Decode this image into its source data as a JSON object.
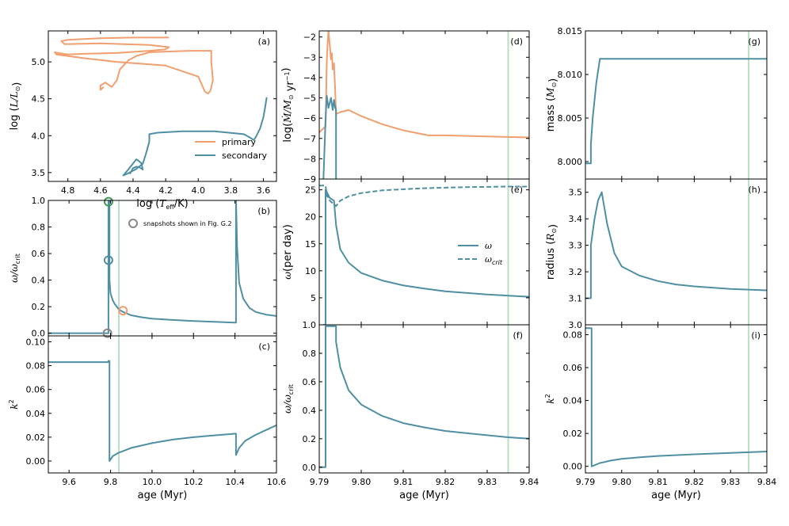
{
  "colors": {
    "primary": "#f19f6f",
    "secondary": "#4f8fa3",
    "vline": "#b9dfc7",
    "snap_gray": "#888888",
    "snap_green": "#3f9a5a"
  },
  "legend": {
    "primary": "primary",
    "secondary": "secondary"
  },
  "snap_legend": "snapshots shown in Fig. G.2",
  "omega_legend": {
    "omega": "ω",
    "omega_crit": "ω",
    "crit_sub": "crit"
  },
  "chart_data": [
    {
      "id": "a",
      "panel_label": "(a)",
      "type": "line",
      "xlabel": {
        "pre": "log (",
        "var": "T",
        "sub": "eff",
        "post": "/K)"
      },
      "ylabel": {
        "pre": "log (",
        "var": "L",
        "mid": "/",
        "var2": "L",
        "sub": "⊙",
        "post": ")"
      },
      "xlim": [
        4.92,
        3.52
      ],
      "ylim": [
        3.38,
        5.42
      ],
      "xticks": [
        "4.8",
        "4.6",
        "4.4",
        "4.2",
        "4.0",
        "3.8",
        "3.6"
      ],
      "xtick_values": [
        4.8,
        4.6,
        4.4,
        4.2,
        4.0,
        3.8,
        3.6
      ],
      "yticks": [
        "3.5",
        "4.0",
        "4.5",
        "5.0"
      ],
      "ytick_values": [
        3.5,
        4.0,
        4.5,
        5.0
      ],
      "series": [
        {
          "name": "primary",
          "color": "primary",
          "x": [
            4.58,
            4.6,
            4.6,
            4.57,
            4.55,
            4.53,
            4.5,
            4.48,
            4.43,
            4.38,
            4.3,
            4.2,
            4.05,
            3.92,
            3.92,
            3.91,
            3.925,
            3.94,
            3.96,
            4.0,
            4.2,
            4.5,
            4.7,
            4.87,
            4.88,
            4.86,
            4.8,
            4.7,
            4.5,
            4.3,
            4.2,
            4.18,
            4.3,
            4.6,
            4.82,
            4.84,
            4.8,
            4.6,
            4.4,
            4.25,
            4.18
          ],
          "y": [
            4.66,
            4.62,
            4.68,
            4.72,
            4.69,
            4.66,
            4.75,
            4.9,
            5.02,
            5.08,
            5.13,
            5.14,
            5.15,
            5.15,
            5.0,
            4.75,
            4.61,
            4.57,
            4.6,
            4.8,
            4.95,
            5.0,
            5.05,
            5.1,
            5.13,
            5.12,
            5.1,
            5.11,
            5.12,
            5.15,
            5.17,
            5.2,
            5.23,
            5.25,
            5.24,
            5.28,
            5.3,
            5.32,
            5.33,
            5.33,
            5.33
          ]
        },
        {
          "name": "secondary",
          "color": "secondary",
          "x": [
            4.42,
            4.41,
            4.4,
            4.38,
            4.36,
            4.34,
            4.35,
            4.38,
            4.43,
            4.46,
            4.43,
            4.38,
            4.34,
            4.32,
            4.3,
            4.3,
            4.25,
            4.1,
            3.9,
            3.72,
            3.68,
            3.66,
            3.65,
            3.64,
            3.62,
            3.6,
            3.59,
            3.58
          ],
          "y": [
            3.48,
            3.52,
            3.56,
            3.58,
            3.57,
            3.54,
            3.63,
            3.68,
            3.54,
            3.46,
            3.49,
            3.55,
            3.62,
            3.76,
            3.92,
            4.02,
            4.04,
            4.06,
            4.06,
            4.02,
            3.97,
            3.94,
            3.97,
            4.01,
            4.1,
            4.25,
            4.38,
            4.52
          ]
        }
      ]
    },
    {
      "id": "b",
      "panel_label": "(b)",
      "type": "line",
      "ylabel": {
        "var": "ω",
        "mid": "/",
        "var2": "ω",
        "sub": "crit"
      },
      "xlim": [
        9.5,
        10.6
      ],
      "ylim": [
        -0.02,
        1.0
      ],
      "yticks": [
        "0.0",
        "0.2",
        "0.4",
        "0.6",
        "0.8",
        "1.0"
      ],
      "ytick_values": [
        0,
        0.2,
        0.4,
        0.6,
        0.8,
        1.0
      ],
      "vline_x": 9.84,
      "series": [
        {
          "name": "secondary",
          "color": "secondary",
          "x": [
            9.5,
            9.79,
            9.79,
            9.795,
            9.795,
            9.8,
            9.81,
            9.82,
            9.84,
            9.86,
            9.9,
            9.95,
            10.0,
            10.1,
            10.2,
            10.3,
            10.4,
            10.405,
            10.405,
            10.41,
            10.42,
            10.44,
            10.47,
            10.5,
            10.55,
            10.6
          ],
          "y": [
            0.0,
            0.0,
            0.995,
            0.995,
            0.4,
            0.3,
            0.25,
            0.22,
            0.18,
            0.16,
            0.135,
            0.12,
            0.11,
            0.1,
            0.092,
            0.086,
            0.08,
            0.08,
            1.0,
            0.65,
            0.38,
            0.26,
            0.19,
            0.16,
            0.14,
            0.13
          ]
        }
      ],
      "markers": [
        {
          "x": 9.79,
          "y": 0.99,
          "color": "snap_green"
        },
        {
          "x": 9.79,
          "y": 0.55,
          "color": "secondary"
        },
        {
          "x": 9.86,
          "y": 0.17,
          "color": "primary"
        },
        {
          "x": 9.785,
          "y": 0.0,
          "color": "snap_gray"
        }
      ]
    },
    {
      "id": "c",
      "panel_label": "(c)",
      "type": "line",
      "xlabel": "age (Myr)",
      "ylabel": {
        "var": "k",
        "sup": "2"
      },
      "xlim": [
        9.5,
        10.6
      ],
      "ylim": [
        -0.01,
        0.105
      ],
      "xticks": [
        "9.6",
        "9.8",
        "10.0",
        "10.2",
        "10.4",
        "10.6"
      ],
      "xtick_values": [
        9.6,
        9.8,
        10.0,
        10.2,
        10.4,
        10.6
      ],
      "yticks": [
        "0.00",
        "0.02",
        "0.04",
        "0.06",
        "0.08",
        "0.10"
      ],
      "ytick_values": [
        0,
        0.02,
        0.04,
        0.06,
        0.08,
        0.1
      ],
      "vline_x": 9.84,
      "series": [
        {
          "name": "secondary",
          "color": "secondary",
          "x": [
            9.5,
            9.79,
            9.79,
            9.795,
            9.795,
            9.81,
            9.84,
            9.9,
            10.0,
            10.1,
            10.2,
            10.3,
            10.405,
            10.405,
            10.42,
            10.45,
            10.5,
            10.55,
            10.6
          ],
          "y": [
            0.083,
            0.083,
            0.084,
            0.084,
            0.0,
            0.004,
            0.007,
            0.011,
            0.015,
            0.018,
            0.02,
            0.0215,
            0.023,
            0.005,
            0.011,
            0.017,
            0.022,
            0.026,
            0.03
          ]
        }
      ]
    },
    {
      "id": "d",
      "panel_label": "(d)",
      "type": "line",
      "ylabel": {
        "pre": "log(",
        "var": "Ṁ",
        "mid": "/",
        "var2": "M",
        "sub": "⊙",
        "post": " yr",
        "sup": "−1",
        "end": ")"
      },
      "xlim": [
        9.79,
        9.84
      ],
      "ylim": [
        -9.0,
        -1.7
      ],
      "yticks": [
        "−9",
        "−8",
        "−7",
        "−6",
        "−5",
        "−4",
        "−3",
        "−2"
      ],
      "ytick_values": [
        -9,
        -8,
        -7,
        -6,
        -5,
        -4,
        -3,
        -2
      ],
      "vline_x": 9.835,
      "series": [
        {
          "name": "primary",
          "color": "primary",
          "x": [
            9.79,
            9.7915,
            9.7918,
            9.792,
            9.7922,
            9.7925,
            9.7928,
            9.793,
            9.7932,
            9.7935,
            9.7938,
            9.794,
            9.795,
            9.797,
            9.8,
            9.805,
            9.81,
            9.816,
            9.82,
            9.83,
            9.84
          ],
          "y": [
            -6.7,
            -6.4,
            -3.2,
            -2.3,
            -1.7,
            -2.4,
            -3.1,
            -2.8,
            -3.6,
            -3.3,
            -4.6,
            -5.8,
            -5.7,
            -5.6,
            -5.9,
            -6.3,
            -6.6,
            -6.85,
            -6.85,
            -6.9,
            -6.95
          ]
        },
        {
          "name": "secondary",
          "color": "secondary",
          "x": [
            9.791,
            9.7915,
            9.7918,
            9.7922,
            9.7928,
            9.7932,
            9.7935,
            9.7938,
            9.7938,
            9.794,
            9.794
          ],
          "y": [
            -9.0,
            -6.0,
            -4.9,
            -5.5,
            -5.0,
            -5.6,
            -5.1,
            -5.5,
            -5.4,
            -5.6,
            -9.0
          ]
        }
      ]
    },
    {
      "id": "e",
      "panel_label": "(e)",
      "type": "line",
      "ylabel": {
        "var": "ω",
        "post": "(per day)"
      },
      "xlim": [
        9.79,
        9.84
      ],
      "ylim": [
        0,
        27
      ],
      "yticks": [
        "5",
        "10",
        "15",
        "20",
        "25"
      ],
      "ytick_values": [
        5,
        10,
        15,
        20,
        25
      ],
      "vline_x": 9.835,
      "series": [
        {
          "name": "omega",
          "color": "secondary",
          "dashed": false,
          "x": [
            9.791,
            9.7915,
            9.7915,
            9.7925,
            9.7935,
            9.794,
            9.795,
            9.797,
            9.8,
            9.805,
            9.81,
            9.815,
            9.82,
            9.825,
            9.83,
            9.835,
            9.84
          ],
          "y": [
            0,
            0,
            25.0,
            23.5,
            23.0,
            18.5,
            14.0,
            11.5,
            9.6,
            8.2,
            7.3,
            6.7,
            6.2,
            5.9,
            5.6,
            5.4,
            5.2
          ]
        },
        {
          "name": "omega_crit",
          "color": "secondary",
          "dashed": true,
          "x": [
            9.79,
            9.7915,
            9.7918,
            9.7925,
            9.794,
            9.795,
            9.797,
            9.8,
            9.805,
            9.81,
            9.815,
            9.82,
            9.825,
            9.83,
            9.835,
            9.84
          ],
          "y": [
            25.8,
            25.8,
            24.0,
            23.0,
            22.0,
            23.0,
            23.8,
            24.4,
            24.9,
            25.1,
            25.3,
            25.4,
            25.5,
            25.55,
            25.6,
            25.6
          ]
        }
      ]
    },
    {
      "id": "f",
      "panel_label": "(f)",
      "type": "line",
      "xlabel": "age (Myr)",
      "ylabel": {
        "var": "ω",
        "mid": "/",
        "var2": "ω",
        "sub": "crit"
      },
      "xlim": [
        9.79,
        9.84
      ],
      "ylim": [
        -0.04,
        1.0
      ],
      "xticks": [
        "9.79",
        "9.80",
        "9.81",
        "9.82",
        "9.83",
        "9.84"
      ],
      "xtick_values": [
        9.79,
        9.8,
        9.81,
        9.82,
        9.83,
        9.84
      ],
      "yticks": [
        "0.0",
        "0.2",
        "0.4",
        "0.6",
        "0.8",
        "1.0"
      ],
      "ytick_values": [
        0,
        0.2,
        0.4,
        0.6,
        0.8,
        1.0
      ],
      "vline_x": 9.835,
      "series": [
        {
          "name": "secondary",
          "color": "secondary",
          "x": [
            9.79,
            9.7915,
            9.7915,
            9.794,
            9.794,
            9.795,
            9.797,
            9.8,
            9.805,
            9.81,
            9.815,
            9.82,
            9.825,
            9.83,
            9.835,
            9.84
          ],
          "y": [
            0,
            0,
            0.99,
            0.99,
            0.88,
            0.7,
            0.54,
            0.44,
            0.36,
            0.31,
            0.28,
            0.255,
            0.24,
            0.225,
            0.21,
            0.2
          ]
        }
      ]
    },
    {
      "id": "g",
      "panel_label": "(g)",
      "type": "line",
      "ylabel": {
        "pre": "mass (",
        "var": "M",
        "sub": "⊙",
        "post": ")"
      },
      "xlim": [
        9.79,
        9.84
      ],
      "ylim": [
        7.998,
        8.015
      ],
      "yticks": [
        "8.000",
        "8.005",
        "8.010",
        "8.015"
      ],
      "ytick_values": [
        8.0,
        8.005,
        8.01,
        8.015
      ],
      "vline_x": 9.835,
      "series": [
        {
          "name": "secondary",
          "color": "secondary",
          "x": [
            9.79,
            9.7915,
            9.7915,
            9.792,
            9.793,
            9.794,
            9.84
          ],
          "y": [
            7.9998,
            7.9998,
            8.002,
            8.005,
            8.009,
            8.0118,
            8.0118
          ]
        }
      ]
    },
    {
      "id": "h",
      "panel_label": "(h)",
      "type": "line",
      "ylabel": {
        "pre": "radius (",
        "var": "R",
        "sub": "⊙",
        "post": ")"
      },
      "xlim": [
        9.79,
        9.84
      ],
      "ylim": [
        3.0,
        3.55
      ],
      "yticks": [
        "3.0",
        "3.1",
        "3.2",
        "3.3",
        "3.4",
        "3.5"
      ],
      "ytick_values": [
        3.0,
        3.1,
        3.2,
        3.3,
        3.4,
        3.5
      ],
      "vline_x": 9.835,
      "series": [
        {
          "name": "secondary",
          "color": "secondary",
          "x": [
            9.79,
            9.7915,
            9.7915,
            9.7925,
            9.7935,
            9.7945,
            9.796,
            9.798,
            9.8,
            9.805,
            9.81,
            9.815,
            9.82,
            9.83,
            9.84
          ],
          "y": [
            3.1,
            3.1,
            3.3,
            3.4,
            3.47,
            3.5,
            3.38,
            3.27,
            3.22,
            3.185,
            3.165,
            3.152,
            3.145,
            3.135,
            3.13
          ]
        }
      ]
    },
    {
      "id": "i",
      "panel_label": "(i)",
      "type": "line",
      "xlabel": "age (Myr)",
      "ylabel": {
        "var": "k",
        "sup": "2"
      },
      "xlim": [
        9.79,
        9.84
      ],
      "ylim": [
        -0.004,
        0.086
      ],
      "xticks": [
        "9.79",
        "9.80",
        "9.81",
        "9.82",
        "9.83",
        "9.84"
      ],
      "xtick_values": [
        9.79,
        9.8,
        9.81,
        9.82,
        9.83,
        9.84
      ],
      "yticks": [
        "0.00",
        "0.02",
        "0.04",
        "0.06",
        "0.08"
      ],
      "ytick_values": [
        0,
        0.02,
        0.04,
        0.06,
        0.08
      ],
      "vline_x": 9.835,
      "series": [
        {
          "name": "secondary",
          "color": "secondary",
          "x": [
            9.79,
            9.7917,
            9.7917,
            9.794,
            9.797,
            9.8,
            9.805,
            9.81,
            9.82,
            9.83,
            9.84
          ],
          "y": [
            0.084,
            0.084,
            0.0,
            0.002,
            0.0035,
            0.0045,
            0.0055,
            0.0063,
            0.0073,
            0.0082,
            0.009
          ]
        }
      ]
    }
  ]
}
